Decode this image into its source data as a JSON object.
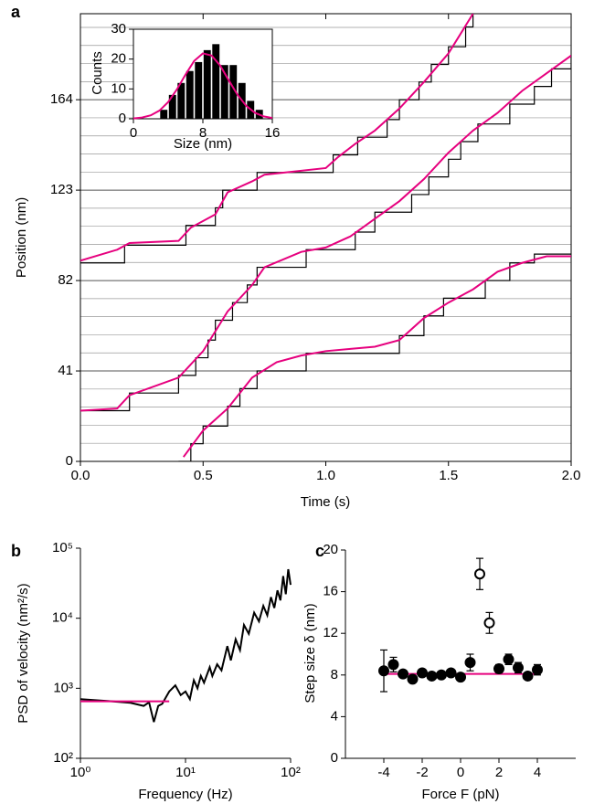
{
  "chart_data": [
    {
      "type": "line",
      "panel_label": "a",
      "xlabel": "Time (s)",
      "ylabel": "Position (nm)",
      "xlim": [
        0,
        2
      ],
      "ylim": [
        0,
        203
      ],
      "xticks": [
        {
          "value": 0,
          "label": "0.0"
        },
        0.5,
        {
          "value": 1,
          "label": "1.0"
        },
        1.5,
        {
          "value": 2,
          "label": "2.0"
        }
      ],
      "yticks": [
        0,
        41,
        82,
        123,
        164
      ],
      "minor_yticks": [
        8.2,
        16.4,
        24.6,
        32.8,
        49.2,
        57.4,
        65.6,
        73.8,
        90.2,
        98.4,
        106.6,
        114.8,
        131.2,
        139.4,
        147.6,
        155.8,
        172.2,
        180.4,
        188.6,
        196.8
      ],
      "grid": true,
      "series": [
        {
          "color": "#000000",
          "step": true,
          "x": [
            0,
            0.18,
            0.43,
            0.55,
            0.58,
            0.72,
            1.03,
            1.13,
            1.25,
            1.3,
            1.38,
            1.43,
            1.5,
            1.57,
            1.6
          ],
          "values": [
            90,
            98,
            107,
            115,
            123,
            131,
            139,
            147,
            155,
            164,
            172,
            180,
            188,
            197,
            205
          ]
        },
        {
          "color": "#000000",
          "step": true,
          "x": [
            0,
            0.2,
            0.4,
            0.47,
            0.52,
            0.55,
            0.62,
            0.68,
            0.72,
            0.92,
            1.12,
            1.2,
            1.35,
            1.42,
            1.5,
            1.55,
            1.62,
            1.75,
            1.85,
            1.92,
            2.0
          ],
          "values": [
            23,
            31,
            39,
            47,
            55,
            64,
            72,
            80,
            88,
            96,
            104,
            113,
            121,
            129,
            137,
            145,
            153,
            162,
            170,
            178,
            184
          ]
        },
        {
          "color": "#000000",
          "step": true,
          "x": [
            0.4,
            0.45,
            0.5,
            0.6,
            0.65,
            0.72,
            0.92,
            1.3,
            1.4,
            1.48,
            1.65,
            1.75,
            1.85,
            2.0
          ],
          "values": [
            0,
            8,
            16,
            25,
            33,
            41,
            49,
            57,
            66,
            74,
            82,
            90,
            94,
            94
          ]
        },
        {
          "color": "#e6007e",
          "x": [
            0,
            0.15,
            0.2,
            0.4,
            0.45,
            0.55,
            0.6,
            0.7,
            0.75,
            1.0,
            1.05,
            1.12,
            1.2,
            1.3,
            1.4,
            1.5,
            1.6
          ],
          "values": [
            91,
            96,
            99,
            100,
            106,
            112,
            122,
            127,
            130,
            133,
            138,
            144,
            150,
            160,
            172,
            185,
            203
          ]
        },
        {
          "color": "#e6007e",
          "x": [
            0,
            0.15,
            0.2,
            0.4,
            0.5,
            0.6,
            0.7,
            0.75,
            0.9,
            1.0,
            1.1,
            1.2,
            1.3,
            1.4,
            1.5,
            1.6,
            1.7,
            1.8,
            1.9,
            2.0
          ],
          "values": [
            23,
            24,
            30,
            38,
            50,
            68,
            80,
            88,
            95,
            97,
            102,
            110,
            118,
            128,
            140,
            150,
            158,
            168,
            176,
            184
          ]
        },
        {
          "color": "#e6007e",
          "x": [
            0.42,
            0.5,
            0.6,
            0.7,
            0.8,
            0.9,
            1.0,
            1.1,
            1.2,
            1.3,
            1.4,
            1.5,
            1.6,
            1.7,
            1.8,
            1.9,
            2.0
          ],
          "values": [
            2,
            14,
            24,
            38,
            45,
            48,
            50,
            51,
            52,
            55,
            65,
            72,
            78,
            86,
            90,
            93,
            93
          ]
        }
      ]
    },
    {
      "type": "histogram",
      "xlabel": "Size (nm)",
      "ylabel": "Counts",
      "xlim": [
        0,
        16
      ],
      "ylim": [
        0,
        30
      ],
      "xticks": [
        0,
        8,
        16
      ],
      "yticks": [
        0,
        10,
        20,
        30
      ],
      "color": "#000000",
      "bins": [
        3,
        4,
        5,
        6,
        7,
        8,
        9,
        10,
        11,
        12,
        13,
        14,
        15
      ],
      "values": [
        3,
        8,
        12,
        16,
        19,
        23,
        25,
        18,
        18,
        12,
        6,
        3
      ],
      "fit": {
        "color": "#e6007e",
        "x": [
          0,
          1,
          2,
          3,
          4,
          5,
          6,
          7,
          8,
          9,
          10,
          11,
          12,
          13,
          14,
          15,
          16
        ],
        "values": [
          0.13,
          0.43,
          1.16,
          2.74,
          5.6,
          9.8,
          14.8,
          19.4,
          21.9,
          21.2,
          17.8,
          12.8,
          8.0,
          4.3,
          2.0,
          0.8,
          0.27
        ]
      }
    },
    {
      "type": "line",
      "panel_label": "b",
      "xlabel": "Frequency (Hz)",
      "ylabel": "PSD of velocity (nm²/s)",
      "xscale": "log",
      "yscale": "log",
      "xlim": [
        1,
        100
      ],
      "ylim": [
        100,
        100000
      ],
      "xticks": [
        {
          "value": 1,
          "label": "10⁰"
        },
        {
          "value": 10,
          "label": "10¹"
        },
        {
          "value": 100,
          "label": "10²"
        }
      ],
      "yticks": [
        {
          "value": 100,
          "label": "10²"
        },
        {
          "value": 1000,
          "label": "10³"
        },
        {
          "value": 10000,
          "label": "10⁴"
        },
        {
          "value": 100000,
          "label": "10⁵"
        }
      ],
      "series": [
        {
          "color": "#000000",
          "x": [
            1,
            2,
            3,
            4,
            4.5,
            5,
            5.5,
            6,
            7,
            8,
            9,
            10,
            11,
            12,
            13,
            14,
            15,
            17,
            18,
            20,
            22,
            25,
            27,
            30,
            33,
            36,
            40,
            45,
            50,
            55,
            60,
            65,
            70,
            75,
            80,
            85,
            90,
            95,
            100
          ],
          "values": [
            700,
            650,
            620,
            560,
            630,
            330,
            560,
            600,
            900,
            1100,
            800,
            900,
            700,
            1300,
            1000,
            1500,
            1200,
            2000,
            1500,
            2200,
            1800,
            4000,
            2500,
            5000,
            3500,
            8000,
            6000,
            12000,
            9000,
            15000,
            11000,
            20000,
            14000,
            25000,
            18000,
            40000,
            22000,
            50000,
            30000
          ]
        },
        {
          "color": "#e6007e",
          "x": [
            1,
            7
          ],
          "values": [
            650,
            650
          ]
        }
      ]
    },
    {
      "type": "scatter",
      "panel_label": "c",
      "xlabel": "Force F (pN)",
      "ylabel": "Step size δ (nm)",
      "xlim": [
        -6,
        6
      ],
      "ylim": [
        0,
        20
      ],
      "xticks": [
        -4,
        -2,
        0,
        2,
        4
      ],
      "yticks": [
        0,
        4,
        8,
        12,
        16,
        20
      ],
      "series": [
        {
          "color": "#000000",
          "filled": true,
          "x": [
            -4,
            -3.5,
            -3,
            -2.5,
            -2,
            -1.5,
            -1,
            -0.5,
            0,
            0.5,
            2,
            2.5,
            3,
            3.5,
            4
          ],
          "values": [
            8.4,
            9.0,
            8.1,
            7.6,
            8.2,
            7.9,
            8.0,
            8.2,
            7.8,
            9.2,
            8.6,
            9.5,
            8.7,
            7.9,
            8.5
          ],
          "errors": [
            2.0,
            0.7,
            0.3,
            0.3,
            0.3,
            0.3,
            0.3,
            0.3,
            0.3,
            0.8,
            0.4,
            0.5,
            0.5,
            0.3,
            0.5
          ]
        },
        {
          "color": "#000000",
          "filled": false,
          "x": [
            1,
            1.5
          ],
          "values": [
            17.7,
            13.0
          ],
          "errors": [
            1.5,
            1.0
          ]
        }
      ],
      "fit": {
        "color": "#e6007e",
        "x": [
          -4,
          4
        ],
        "values": [
          8.1,
          8.1
        ]
      }
    }
  ]
}
